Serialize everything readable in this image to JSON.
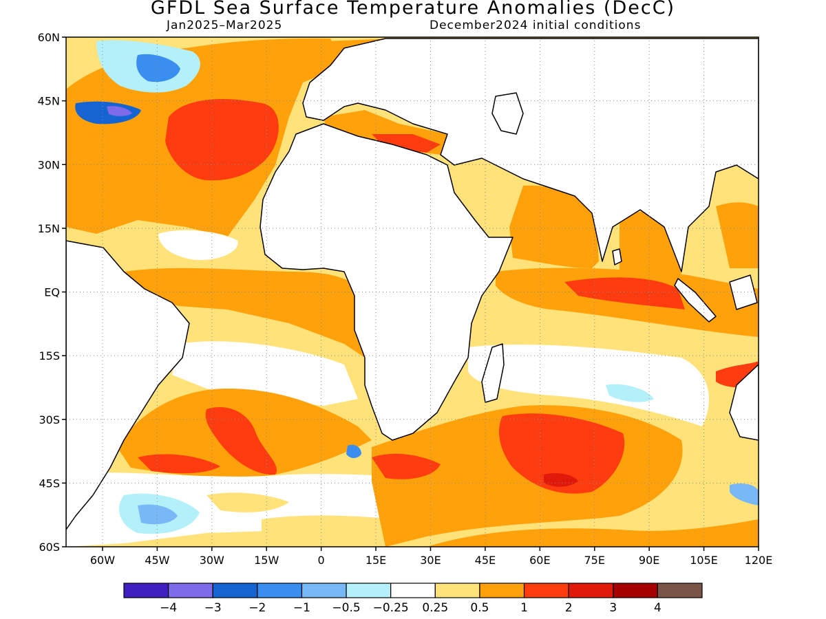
{
  "title": "GFDL Sea Surface Temperature Anomalies (DecC)",
  "subtitle_left": "Jan2025–Mar2025",
  "subtitle_right": "December2024 initial conditions",
  "map": {
    "lon_range": [
      -70,
      120
    ],
    "lat_range": [
      -60,
      60
    ],
    "grid": true,
    "lat_ticks": [
      {
        "v": 60,
        "label": "60N"
      },
      {
        "v": 45,
        "label": "45N"
      },
      {
        "v": 30,
        "label": "30N"
      },
      {
        "v": 15,
        "label": "15N"
      },
      {
        "v": 0,
        "label": "EQ"
      },
      {
        "v": -15,
        "label": "15S"
      },
      {
        "v": -30,
        "label": "30S"
      },
      {
        "v": -45,
        "label": "45S"
      },
      {
        "v": -60,
        "label": "60S"
      }
    ],
    "lon_ticks": [
      {
        "v": -60,
        "label": "60W"
      },
      {
        "v": -45,
        "label": "45W"
      },
      {
        "v": -30,
        "label": "30W"
      },
      {
        "v": -15,
        "label": "15W"
      },
      {
        "v": 0,
        "label": "0"
      },
      {
        "v": 15,
        "label": "15E"
      },
      {
        "v": 30,
        "label": "30E"
      },
      {
        "v": 45,
        "label": "45E"
      },
      {
        "v": 60,
        "label": "60E"
      },
      {
        "v": 75,
        "label": "75E"
      },
      {
        "v": 90,
        "label": "90E"
      },
      {
        "v": 105,
        "label": "105E"
      },
      {
        "v": 120,
        "label": "120E"
      }
    ]
  },
  "colorbar": {
    "colors": [
      "#3f1fbf",
      "#7d6bea",
      "#1664d2",
      "#3a8ef0",
      "#78b8f7",
      "#b4f0fa",
      "#ffffff",
      "#ffe27a",
      "#ffa10a",
      "#ff3c0f",
      "#e01a0a",
      "#a50000",
      "#7a5446"
    ],
    "labels": [
      "−4",
      "−3",
      "−2",
      "−1",
      "−0.5",
      "−0.25",
      "0.25",
      "0.5",
      "1",
      "2",
      "3",
      "4"
    ]
  }
}
